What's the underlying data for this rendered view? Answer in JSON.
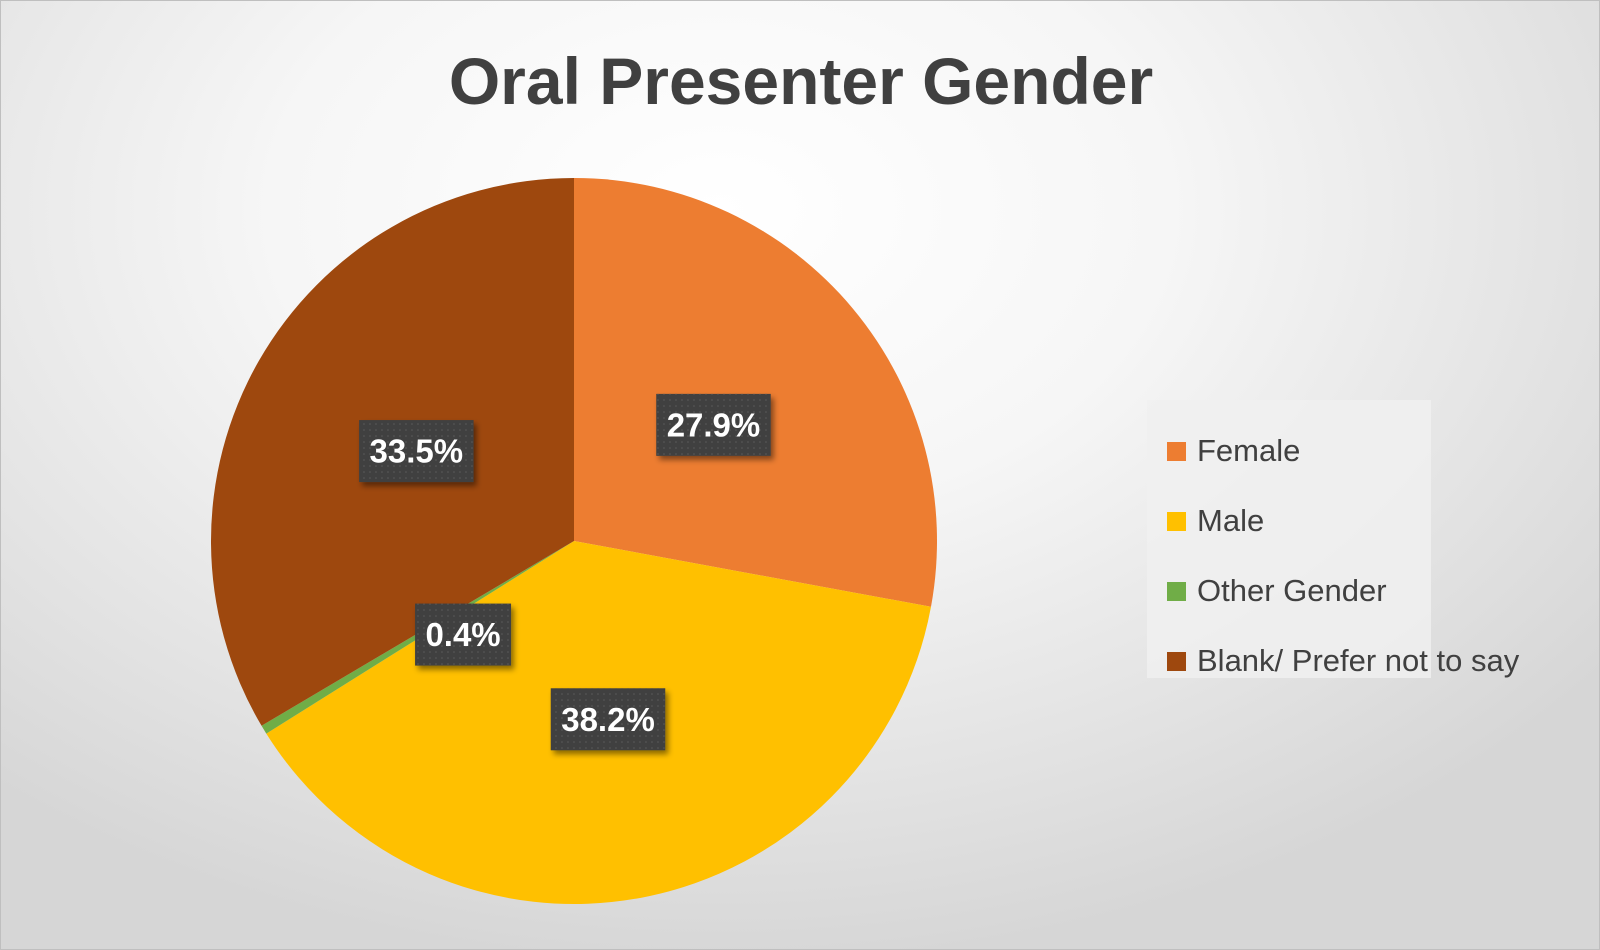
{
  "chart_data": {
    "type": "pie",
    "title": "Oral Presenter Gender",
    "slices": [
      {
        "name": "Female",
        "value": 27.9,
        "label": "27.9%",
        "color": "#ED7D31"
      },
      {
        "name": "Male",
        "value": 38.2,
        "label": "38.2%",
        "color": "#FFC000"
      },
      {
        "name": "Other Gender",
        "value": 0.4,
        "label": "0.4%",
        "color": "#70AD47"
      },
      {
        "name": "Blank/ Prefer not to say",
        "value": 33.5,
        "label": "33.5%",
        "color": "#9E480E"
      }
    ],
    "legend_position": "right",
    "data_label_style": {
      "background": "#404040",
      "text_color": "#FFFFFF"
    }
  }
}
